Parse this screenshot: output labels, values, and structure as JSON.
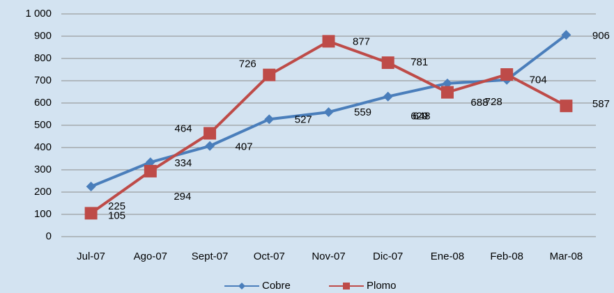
{
  "chart_data": {
    "type": "line",
    "categories": [
      "Jul-07",
      "Ago-07",
      "Sept-07",
      "Oct-07",
      "Nov-07",
      "Dic-07",
      "Ene-08",
      "Feb-08",
      "Mar-08"
    ],
    "series": [
      {
        "name": "Cobre",
        "color": "#4a7ebb",
        "values": [
          225,
          334,
          407,
          527,
          559,
          629,
          688,
          704,
          906
        ]
      },
      {
        "name": "Plomo",
        "color": "#be4b48",
        "values": [
          105,
          294,
          464,
          726,
          877,
          781,
          648,
          728,
          587
        ]
      }
    ],
    "ylim": [
      0,
      1000
    ],
    "yticks": [
      0,
      100,
      200,
      300,
      400,
      500,
      600,
      700,
      800,
      900,
      {
        "value": 1000,
        "label": "1 000"
      }
    ],
    "grid": true,
    "legend": "bottom"
  }
}
